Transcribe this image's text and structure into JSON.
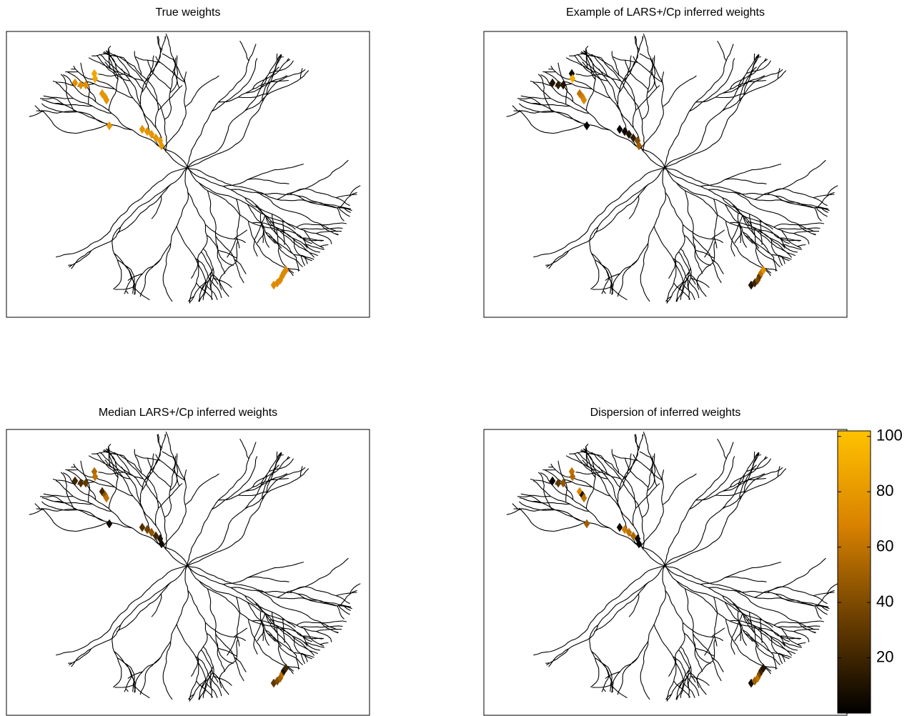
{
  "chart_data": [
    {
      "type": "tree-weights",
      "title": "True weights",
      "values": [
        75,
        75,
        75,
        88,
        88,
        78,
        78,
        78,
        80,
        78,
        78,
        78,
        78,
        80,
        80,
        72,
        72,
        72,
        72,
        72,
        72
      ]
    },
    {
      "type": "tree-weights",
      "title": "Example of LARS+/Cp inferred weights",
      "values": [
        10,
        15,
        10,
        5,
        90,
        60,
        65,
        70,
        0,
        0,
        5,
        10,
        15,
        40,
        50,
        10,
        20,
        40,
        30,
        60,
        75
      ]
    },
    {
      "type": "tree-weights",
      "title": "Median LARS+/Cp inferred weights",
      "values": [
        20,
        25,
        30,
        55,
        60,
        20,
        45,
        60,
        5,
        25,
        35,
        45,
        20,
        10,
        5,
        30,
        40,
        50,
        60,
        10,
        20
      ]
    },
    {
      "type": "tree-weights",
      "title": "Dispersion of inferred weights",
      "values": [
        0,
        30,
        45,
        60,
        55,
        70,
        10,
        60,
        50,
        5,
        65,
        60,
        55,
        5,
        0,
        5,
        50,
        60,
        40,
        20,
        10
      ]
    }
  ],
  "colorbar": {
    "clim": [
      0,
      102
    ],
    "ticks": [
      20,
      40,
      60,
      80,
      100
    ],
    "colormap": [
      "#000000",
      "#6b3f00",
      "#d98200",
      "#ffc200"
    ]
  }
}
